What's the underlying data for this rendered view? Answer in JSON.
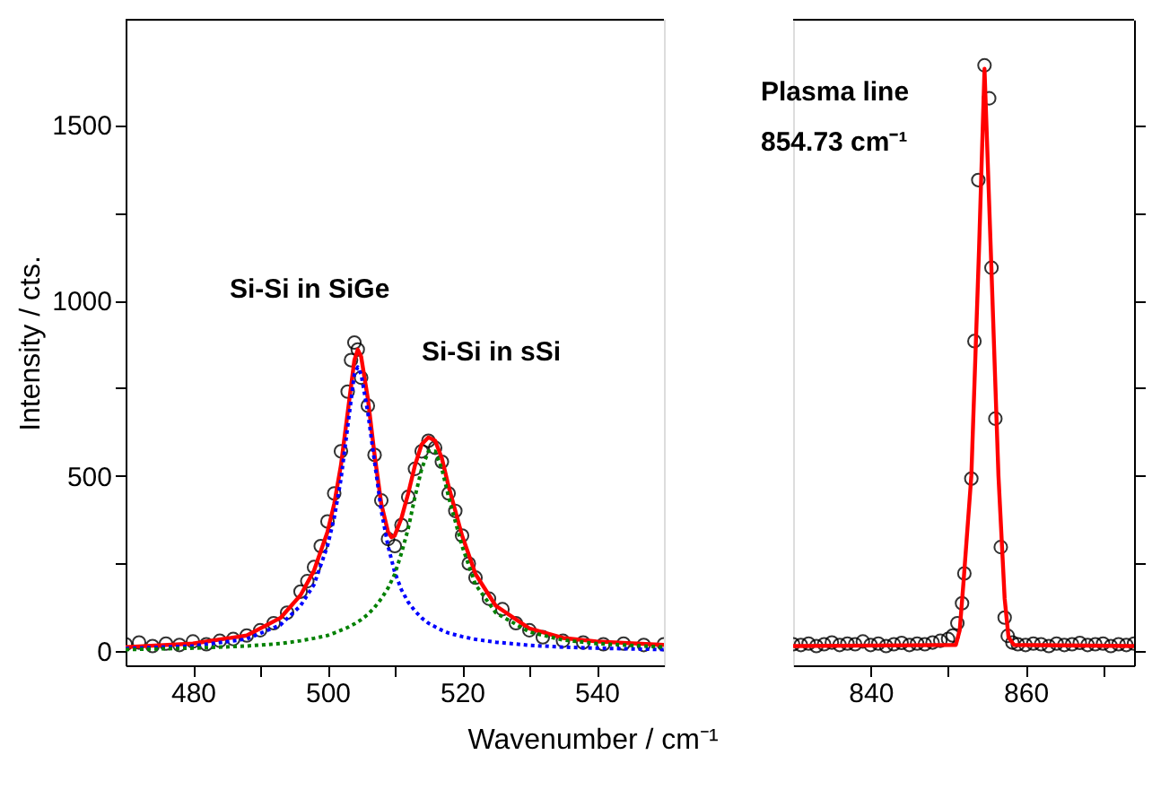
{
  "chart_data": [
    {
      "type": "scatter",
      "xlabel": "Wavenumber / cm⁻¹",
      "ylabel": "Intensity / cts.",
      "xlim": [
        470,
        550
      ],
      "ylim": [
        -40,
        1800
      ],
      "xticks": [
        480,
        {
          "value": 490,
          "label": null
        },
        500,
        {
          "value": 510,
          "label": null
        },
        520,
        {
          "value": 530,
          "label": null
        },
        540
      ],
      "yticks": [
        0,
        {
          "value": 250,
          "label": null
        },
        500,
        {
          "value": 750,
          "label": null
        },
        1000,
        {
          "value": 1250,
          "label": null
        },
        1500
      ],
      "annotations": [
        "Si-Si in SiGe",
        "Si-Si in sSi"
      ],
      "series": [
        {
          "marker": "circle",
          "color": "#000000",
          "x": [
            470,
            472,
            474,
            476,
            478,
            480,
            482,
            484,
            486,
            488,
            490,
            492,
            494,
            496,
            497,
            498,
            499,
            500,
            501,
            502,
            503,
            503.5,
            504,
            504.5,
            505,
            506,
            507,
            508,
            509,
            510,
            511,
            512,
            513,
            514,
            515,
            516,
            517,
            518,
            519,
            520,
            521,
            522,
            524,
            526,
            528,
            530,
            532,
            535,
            538,
            541,
            544,
            547,
            550
          ],
          "values": [
            20,
            25,
            15,
            22,
            18,
            28,
            20,
            30,
            35,
            45,
            60,
            80,
            110,
            170,
            200,
            240,
            300,
            370,
            450,
            570,
            740,
            830,
            880,
            860,
            780,
            700,
            560,
            430,
            320,
            300,
            360,
            440,
            520,
            570,
            600,
            580,
            540,
            450,
            400,
            330,
            250,
            210,
            150,
            120,
            80,
            60,
            40,
            30,
            25,
            20,
            22,
            18,
            20
          ]
        },
        {
          "type": "line",
          "color": "#ff0000",
          "line_style": "solid",
          "x": [
            470,
            480,
            488,
            493,
            496,
            498,
            500,
            501,
            502,
            503,
            504,
            504.5,
            505,
            506,
            507,
            508,
            509,
            509.5,
            510,
            511,
            512,
            513,
            514,
            515,
            516,
            517,
            518,
            520,
            522,
            525,
            530,
            535,
            540,
            550
          ],
          "values": [
            12,
            22,
            45,
            95,
            160,
            230,
            340,
            420,
            530,
            680,
            830,
            860,
            840,
            720,
            560,
            420,
            340,
            325,
            330,
            380,
            450,
            530,
            590,
            610,
            600,
            550,
            470,
            330,
            220,
            130,
            65,
            38,
            28,
            18
          ]
        },
        {
          "type": "line",
          "color": "#0000ff",
          "line_style": "dotted",
          "x": [
            470,
            480,
            488,
            493,
            496,
            498,
            500,
            501,
            502,
            503,
            504,
            504.5,
            505,
            506,
            507,
            508,
            509,
            510,
            511,
            512,
            513,
            514,
            515,
            516,
            517,
            518,
            520,
            522,
            525,
            530,
            535,
            540,
            550
          ],
          "values": [
            8,
            15,
            35,
            75,
            130,
            190,
            300,
            380,
            490,
            640,
            790,
            810,
            790,
            680,
            540,
            400,
            300,
            225,
            175,
            140,
            115,
            95,
            80,
            70,
            60,
            52,
            42,
            34,
            26,
            17,
            12,
            9,
            5
          ]
        },
        {
          "type": "line",
          "color": "#008000",
          "line_style": "dotted",
          "x": [
            470,
            480,
            488,
            493,
            496,
            498,
            500,
            501,
            502,
            503,
            504,
            504.5,
            505,
            506,
            507,
            508,
            509,
            510,
            511,
            512,
            513,
            514,
            515,
            516,
            517,
            518,
            520,
            522,
            525,
            530,
            535,
            540,
            550
          ],
          "values": [
            5,
            9,
            15,
            22,
            30,
            37,
            45,
            52,
            60,
            68,
            78,
            84,
            90,
            105,
            125,
            150,
            180,
            220,
            280,
            350,
            440,
            520,
            570,
            570,
            520,
            440,
            300,
            190,
            110,
            55,
            32,
            22,
            12
          ]
        }
      ]
    },
    {
      "type": "scatter",
      "xlim": [
        830,
        874
      ],
      "ylim": [
        -40,
        1800
      ],
      "tick_labels": "x",
      "xticks": [
        840,
        {
          "value": 850,
          "label": null
        },
        860,
        {
          "value": 870,
          "label": null
        }
      ],
      "yticks": [
        {
          "value": 0,
          "label": null
        },
        {
          "value": 250,
          "label": null
        },
        {
          "value": 500,
          "label": null
        },
        {
          "value": 750,
          "label": null
        },
        {
          "value": 1000,
          "label": null
        },
        {
          "value": 1250,
          "label": null
        },
        {
          "value": 1500,
          "label": null
        }
      ],
      "annotations": [
        "Plasma line\n854.73 cm⁻¹"
      ],
      "series": [
        {
          "marker": "circle",
          "color": "#000000",
          "x": [
            830,
            831,
            832,
            833,
            834,
            835,
            836,
            837,
            838,
            839,
            840,
            841,
            842,
            843,
            844,
            845,
            846,
            847,
            848,
            849,
            850,
            850.6,
            851.2,
            851.8,
            852.1,
            853.0,
            853.4,
            853.9,
            854.7,
            855.3,
            855.6,
            856.1,
            856.8,
            857.3,
            857.7,
            858.3,
            859,
            860,
            861,
            862,
            863,
            864,
            865,
            866,
            867,
            868,
            869,
            870,
            871,
            872,
            873,
            874
          ],
          "values": [
            20,
            18,
            22,
            15,
            20,
            25,
            18,
            22,
            20,
            28,
            18,
            22,
            15,
            20,
            24,
            18,
            22,
            20,
            25,
            30,
            35,
            45,
            80,
            137,
            222,
            492,
            884,
            1343,
            1670,
            1576,
            1093,
            663,
            297,
            96,
            44,
            25,
            20,
            18,
            22,
            20,
            15,
            22,
            18,
            20,
            24,
            18,
            20,
            22,
            15,
            20,
            18,
            22
          ]
        },
        {
          "type": "line",
          "color": "#ff0000",
          "line_style": "solid",
          "x": [
            830,
            851,
            851.5,
            852,
            853,
            854,
            854.7,
            855.5,
            856.5,
            857.3,
            857.8,
            858.5,
            874
          ],
          "values": [
            15,
            18,
            60,
            200,
            500,
            1150,
            1660,
            1150,
            500,
            150,
            40,
            18,
            15
          ]
        }
      ]
    }
  ]
}
